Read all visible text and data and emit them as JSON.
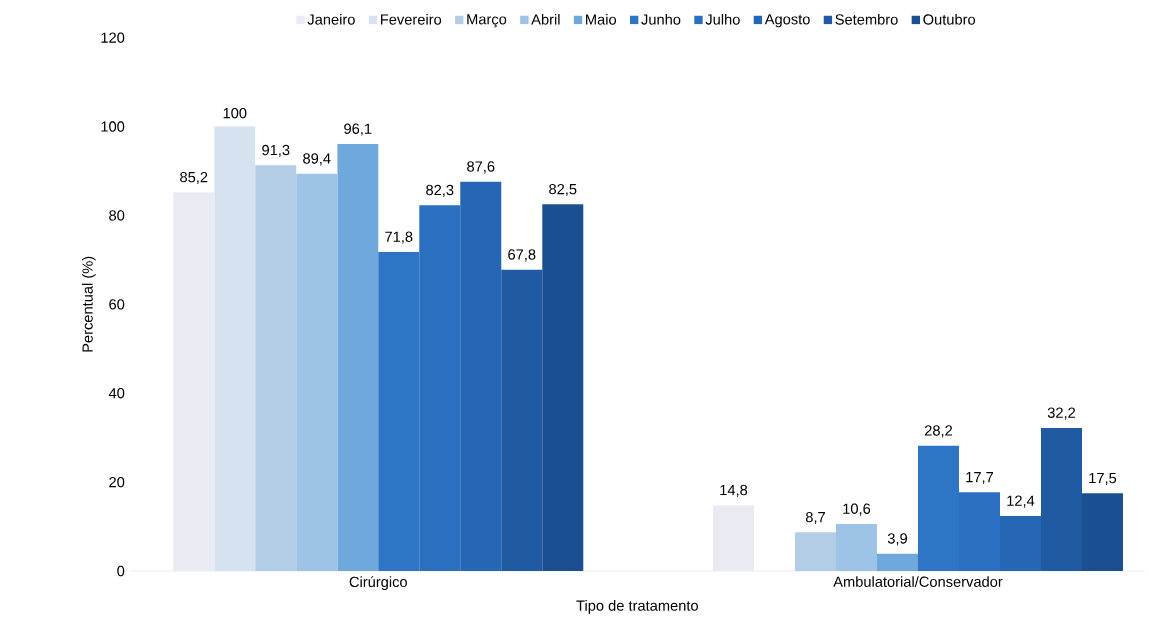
{
  "chart_data": {
    "type": "bar",
    "xlabel": "Tipo de tratamento",
    "ylabel": "Percentual (%)",
    "categories": [
      "Cirúrgico",
      "Ambulatorial/Conservador"
    ],
    "ylim": [
      0,
      120
    ],
    "yticks": [
      0,
      20,
      40,
      60,
      80,
      100,
      120
    ],
    "legend": "top",
    "grid": false,
    "series": [
      {
        "name": "Janeiro",
        "color": "#e8ecf2",
        "values": [
          85.2,
          14.8
        ],
        "value_labels": [
          "85,2",
          "14,8"
        ]
      },
      {
        "name": "Fevereiro",
        "color": "#d6e2ef",
        "values": [
          100,
          null
        ],
        "value_labels": [
          "100",
          null
        ]
      },
      {
        "name": "Março",
        "color": "#b4cde6",
        "values": [
          91.3,
          8.7
        ],
        "value_labels": [
          "91,3",
          "8,7"
        ]
      },
      {
        "name": "Abril",
        "color": "#9dc3e6",
        "values": [
          89.4,
          10.6
        ],
        "value_labels": [
          "89,4",
          "10,6"
        ]
      },
      {
        "name": "Maio",
        "color": "#6fa8dc",
        "values": [
          96.1,
          3.9
        ],
        "value_labels": [
          "96,1",
          "3,9"
        ]
      },
      {
        "name": "Junho",
        "color": "#2e75c6",
        "values": [
          71.8,
          28.2
        ],
        "value_labels": [
          "71,8",
          "28,2"
        ]
      },
      {
        "name": "Julho",
        "color": "#2a6fc0",
        "values": [
          82.3,
          17.7
        ],
        "value_labels": [
          "82,3",
          "17,7"
        ]
      },
      {
        "name": "Agosto",
        "color": "#2566b5",
        "values": [
          87.6,
          12.4
        ],
        "value_labels": [
          "87,6",
          "12,4"
        ]
      },
      {
        "name": "Setembro",
        "color": "#1f5aa3",
        "values": [
          67.8,
          32.2
        ],
        "value_labels": [
          "67,8",
          "32,2"
        ]
      },
      {
        "name": "Outubro",
        "color": "#1c4f91",
        "values": [
          82.5,
          17.5
        ],
        "value_labels": [
          "82,5",
          "17,5"
        ]
      }
    ]
  }
}
